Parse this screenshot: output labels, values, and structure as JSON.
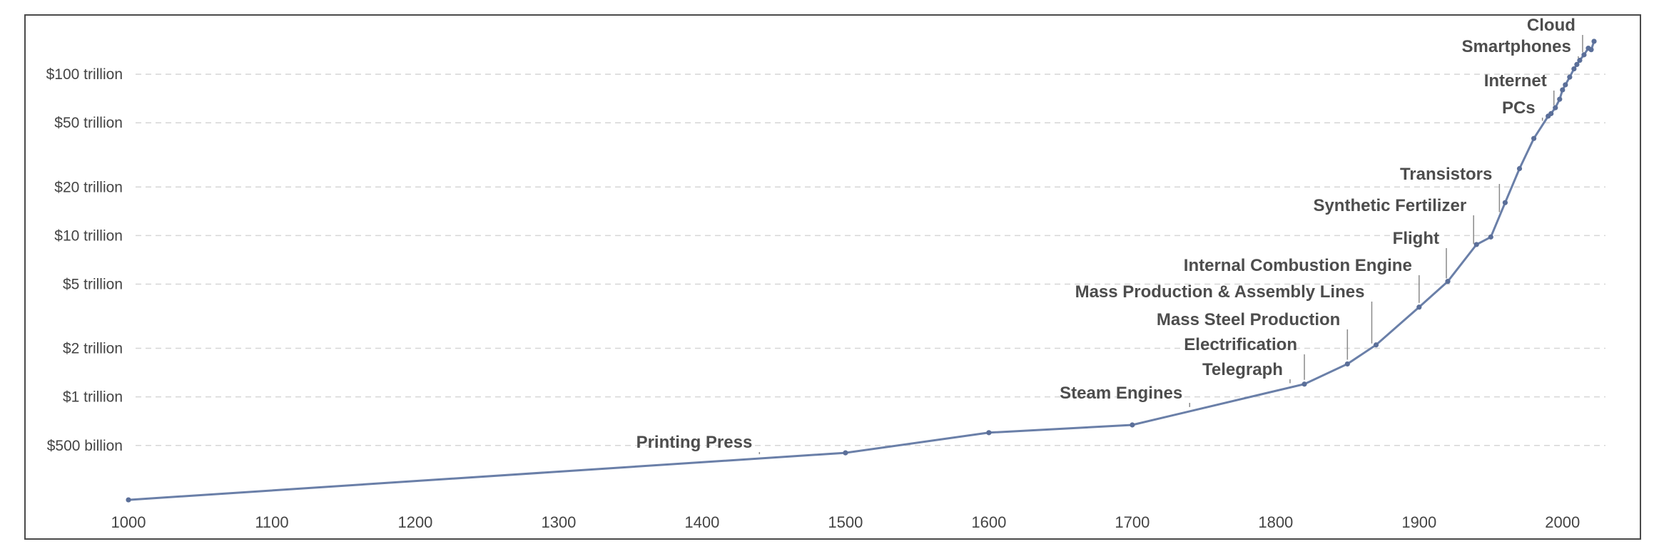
{
  "chart_data": {
    "type": "line",
    "title": "",
    "xlabel": "",
    "ylabel": "",
    "y_scale": "log",
    "x_range": [
      1000,
      2022
    ],
    "y_range": [
      0.21,
      170
    ],
    "grid": "horizontal dashed",
    "line_color": "#6a7fa8",
    "yticks": [
      {
        "value": 0.5,
        "label": "$500 billion"
      },
      {
        "value": 1,
        "label": "$1 trillion"
      },
      {
        "value": 2,
        "label": "$2 trillion"
      },
      {
        "value": 5,
        "label": "$5 trillion"
      },
      {
        "value": 10,
        "label": "$10 trillion"
      },
      {
        "value": 20,
        "label": "$20 trillion"
      },
      {
        "value": 50,
        "label": "$50 trillion"
      },
      {
        "value": 100,
        "label": "$100 trillion"
      }
    ],
    "xticks": [
      {
        "value": 1000,
        "label": "1000"
      },
      {
        "value": 1100,
        "label": "1100"
      },
      {
        "value": 1200,
        "label": "1200"
      },
      {
        "value": 1300,
        "label": "1300"
      },
      {
        "value": 1400,
        "label": "1400"
      },
      {
        "value": 1500,
        "label": "1500"
      },
      {
        "value": 1600,
        "label": "1600"
      },
      {
        "value": 1700,
        "label": "1700"
      },
      {
        "value": 1800,
        "label": "1800"
      },
      {
        "value": 1900,
        "label": "1900"
      },
      {
        "value": 2000,
        "label": "2000"
      }
    ],
    "series": [
      {
        "x": [
          1000,
          1500,
          1600,
          1700,
          1820,
          1850,
          1870,
          1900,
          1920,
          1940,
          1950,
          1960,
          1970,
          1980,
          1990,
          1992,
          1995,
          1998,
          2000,
          2002,
          2005,
          2008,
          2010,
          2012,
          2015,
          2018,
          2020,
          2022
        ],
        "values": [
          0.23,
          0.45,
          0.6,
          0.67,
          1.2,
          1.6,
          2.1,
          3.6,
          5.2,
          8.8,
          9.8,
          16,
          26,
          40,
          55,
          57,
          62,
          70,
          80,
          86,
          96,
          108,
          115,
          122,
          132,
          145,
          142,
          160
        ]
      }
    ],
    "annotations": [
      {
        "label": "Printing Press",
        "x": 1440
      },
      {
        "label": "Steam Engines",
        "x": 1740
      },
      {
        "label": "Telegraph",
        "x": 1810
      },
      {
        "label": "Electrification",
        "x": 1820
      },
      {
        "label": "Mass Steel Production",
        "x": 1850
      },
      {
        "label": "Mass Production & Assembly Lines",
        "x": 1867
      },
      {
        "label": "Internal Combustion Engine",
        "x": 1900
      },
      {
        "label": "Flight",
        "x": 1919
      },
      {
        "label": "Synthetic Fertilizer",
        "x": 1938
      },
      {
        "label": "Transistors",
        "x": 1956
      },
      {
        "label": "PCs",
        "x": 1986
      },
      {
        "label": "Internet",
        "x": 1994
      },
      {
        "label": "Smartphones",
        "x": 2011
      },
      {
        "label": "Cloud",
        "x": 2014
      }
    ]
  }
}
